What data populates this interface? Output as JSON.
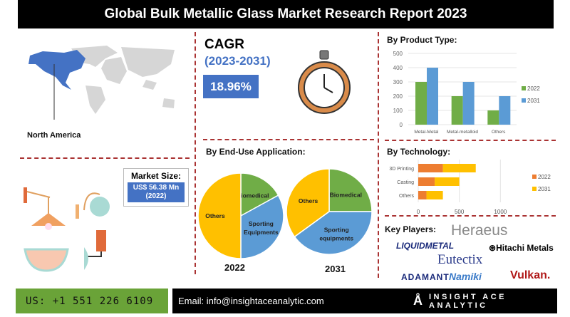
{
  "title": "Global Bulk Metallic Glass Market Research Report 2023",
  "region": {
    "label": "North America",
    "highlight_color": "#4472c4"
  },
  "cagr": {
    "label": "CAGR",
    "years": "(2023-2031)",
    "value": "18.96%"
  },
  "market_size": {
    "label": "Market Size:",
    "value": "US$ 56.38 Mn",
    "year": "(2022)"
  },
  "end_use": {
    "title": "By End-Use Application:",
    "pies": [
      {
        "year": "2022",
        "slices": [
          {
            "label": "Biomedical",
            "value": 17,
            "color": "#70ad47"
          },
          {
            "label": "Sporting Equipments",
            "value": 33,
            "color": "#5b9bd5"
          },
          {
            "label": "Others",
            "value": 50,
            "color": "#ffc000"
          }
        ]
      },
      {
        "year": "2031",
        "slices": [
          {
            "label": "Biomedical",
            "value": 25,
            "color": "#70ad47"
          },
          {
            "label": "Sporting equipments",
            "value": 40,
            "color": "#5b9bd5"
          },
          {
            "label": "Others",
            "value": 35,
            "color": "#ffc000"
          }
        ]
      }
    ]
  },
  "chart_data": [
    {
      "type": "bar",
      "title": "By Product Type:",
      "categories": [
        "Metal-Metal",
        "Metal-metalloid",
        "Others"
      ],
      "series": [
        {
          "name": "2022",
          "values": [
            300,
            200,
            100
          ],
          "color": "#70ad47"
        },
        {
          "name": "2031",
          "values": [
            400,
            300,
            200
          ],
          "color": "#5b9bd5"
        }
      ],
      "ylim": [
        0,
        500
      ],
      "yticks": [
        0,
        100,
        200,
        300,
        400,
        500
      ],
      "grid": true,
      "legend": "right"
    },
    {
      "type": "bar",
      "orientation": "horizontal",
      "stacked": true,
      "title": "By Technology:",
      "categories": [
        "3D Printing",
        "Casting",
        "Others"
      ],
      "series": [
        {
          "name": "2022",
          "values": [
            300,
            200,
            100
          ],
          "color": "#ed7d31"
        },
        {
          "name": "2031",
          "values": [
            400,
            300,
            200
          ],
          "color": "#ffc000"
        }
      ],
      "xlim": [
        0,
        1500
      ],
      "xticks": [
        0,
        500,
        1000
      ],
      "grid": true,
      "legend": "right"
    }
  ],
  "key_players": {
    "label": "Key Players:",
    "logos": [
      "Heraeus",
      "LIQUIDMETAL",
      "Hitachi Metals",
      "Eutectix",
      "ADAMANT",
      "Namiki",
      "Vulkan."
    ]
  },
  "footer": {
    "phone": "US: +1 551 226 6109",
    "email": "Email: info@insightaceanalytic.com",
    "brand": "INSIGHT ACE ANALYTIC"
  }
}
